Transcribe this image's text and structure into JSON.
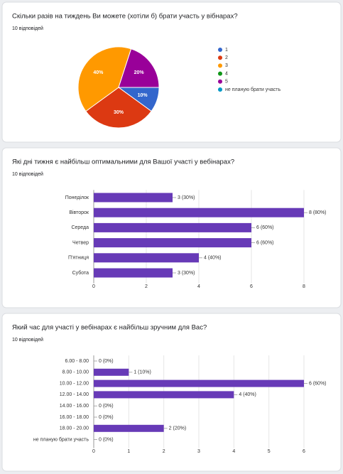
{
  "chart_data": [
    {
      "type": "pie",
      "title": "Скільки разів на тиждень Ви можете (хотіли б) брати участь у вібнарах?",
      "subtitle": "10 відповідей",
      "categories": [
        "1",
        "2",
        "3",
        "4",
        "5",
        "не планую брати участь"
      ],
      "values": [
        10,
        30,
        40,
        0,
        20,
        0
      ],
      "value_labels": [
        "10%",
        "30%",
        "40%",
        null,
        "20%",
        null
      ],
      "colors": [
        "#3366cc",
        "#dc3912",
        "#ff9900",
        "#109618",
        "#990099",
        "#0099c6"
      ]
    },
    {
      "type": "hbar",
      "title": "Які дні тижня є найбільш оптимальними для Вашої участі у вебінарах?",
      "subtitle": "10 відповідей",
      "categories": [
        "Понеділок",
        "Вівторок",
        "Середа",
        "Четвер",
        "П'ятниця",
        "Субота"
      ],
      "values": [
        3,
        8,
        6,
        6,
        4,
        3
      ],
      "value_labels": [
        "3 (30%)",
        "8 (80%)",
        "6 (60%)",
        "6 (60%)",
        "4 (40%)",
        "3 (30%)"
      ],
      "color": "#673ab7",
      "xlim": [
        0,
        8
      ],
      "xticks": [
        0,
        2,
        4,
        6,
        8
      ],
      "grid": true
    },
    {
      "type": "hbar",
      "title": "Який час для участі у вебінарах є найбільш зручним для Вас?",
      "subtitle": "10 відповідей",
      "categories": [
        "6.00 - 8.00",
        "8.00 - 10.00",
        "10.00 - 12.00",
        "12.00 - 14.00",
        "14.00 - 16.00",
        "16.00 - 18.00",
        "18.00 - 20.00",
        "не планую брати участь"
      ],
      "values": [
        0,
        1,
        6,
        4,
        0,
        0,
        2,
        0
      ],
      "value_labels": [
        "0 (0%)",
        "1 (10%)",
        "6 (60%)",
        "4 (40%)",
        "0 (0%)",
        "0 (0%)",
        "2 (20%)",
        "0 (0%)"
      ],
      "color": "#673ab7",
      "xlim": [
        0,
        6
      ],
      "xticks": [
        0,
        1,
        2,
        3,
        4,
        5,
        6
      ],
      "grid": true
    }
  ]
}
